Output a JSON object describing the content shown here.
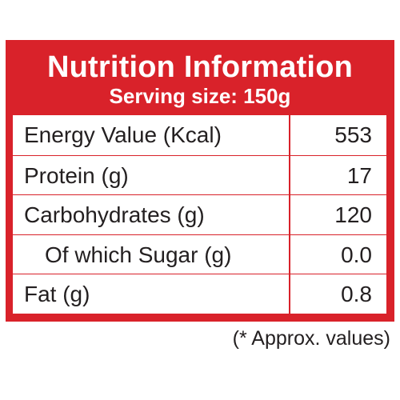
{
  "panel": {
    "title": "Nutrition Information",
    "serving": "Serving size: 150g",
    "border_color": "#d9222a"
  },
  "rows": [
    {
      "label": "Energy Value (Kcal)",
      "value": "553"
    },
    {
      "label": "Protein (g)",
      "value": "17"
    },
    {
      "label": "Carbohydrates (g)",
      "value": "120"
    },
    {
      "label": "Of which Sugar (g)",
      "value": "0.0",
      "indented": true
    },
    {
      "label": "Fat (g)",
      "value": "0.8"
    }
  ],
  "footnote": "(* Approx. values)"
}
